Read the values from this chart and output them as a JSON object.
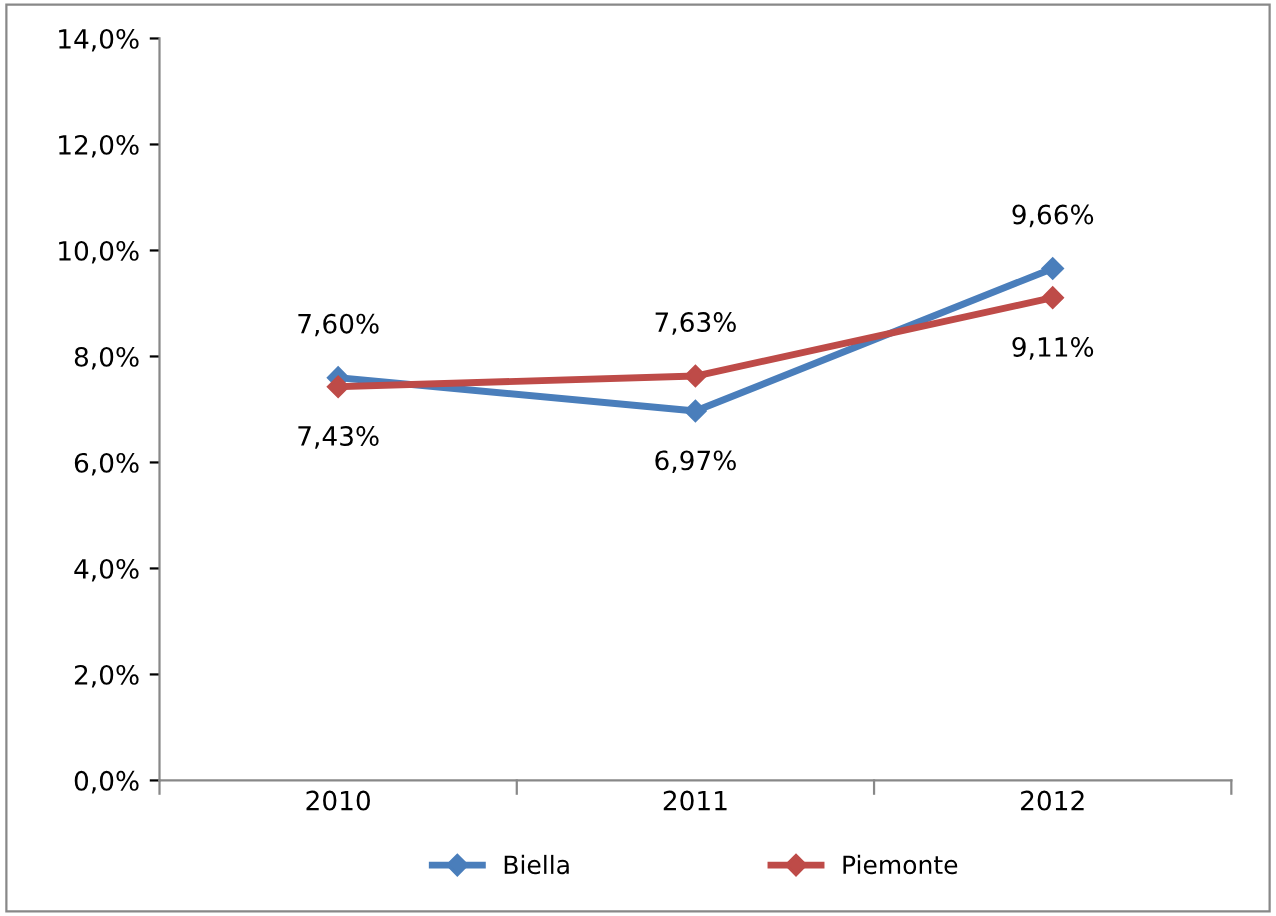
{
  "chart_data": {
    "type": "line",
    "categories": [
      "2010",
      "2011",
      "2012"
    ],
    "series": [
      {
        "name": "Biella",
        "color": "#4a7ebb",
        "values": [
          7.6,
          6.97,
          9.66
        ],
        "value_labels": [
          "7,60%",
          "6,97%",
          "9,66%"
        ]
      },
      {
        "name": "Piemonte",
        "color": "#be4b48",
        "values": [
          7.43,
          7.63,
          9.11
        ],
        "value_labels": [
          "7,43%",
          "7,63%",
          "9,11%"
        ]
      }
    ],
    "ylim": [
      0,
      14
    ],
    "yticks": [
      {
        "value": 0,
        "label": "0,0%"
      },
      {
        "value": 2,
        "label": "2,0%"
      },
      {
        "value": 4,
        "label": "4,0%"
      },
      {
        "value": 6,
        "label": "6,0%"
      },
      {
        "value": 8,
        "label": "8,0%"
      },
      {
        "value": 10,
        "label": "10,0%"
      },
      {
        "value": 12,
        "label": "12,0%"
      },
      {
        "value": 14,
        "label": "14,0%"
      }
    ],
    "grid": false,
    "legend": "bottom",
    "marker": "diamond",
    "line_style": "solid"
  }
}
